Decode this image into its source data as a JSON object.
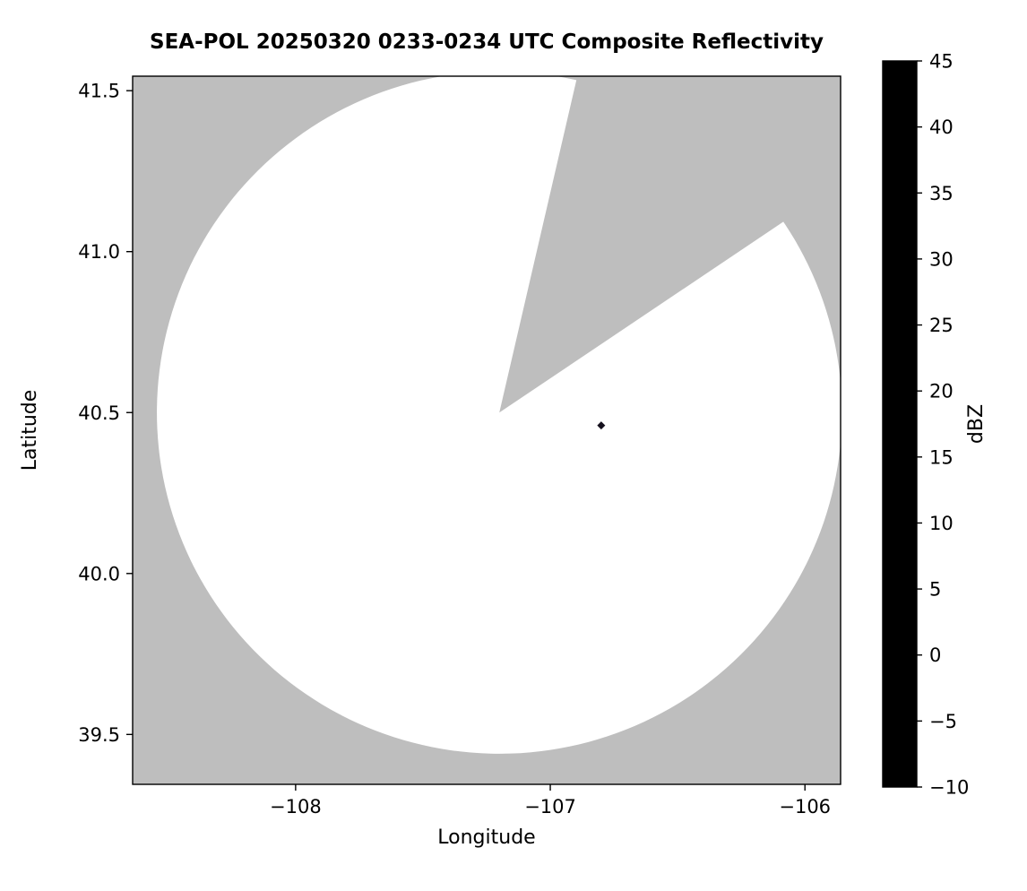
{
  "figure": {
    "background": "#ffffff"
  },
  "chart_data": {
    "type": "radar_composite_reflectivity_map",
    "title": "SEA-POL 20250320 0233-0234 UTC Composite Reflectivity",
    "xlabel": "Longitude",
    "ylabel": "Latitude",
    "xlim": [
      -108.64,
      -105.86
    ],
    "ylim": [
      39.345,
      41.545
    ],
    "grid": false,
    "x_ticks": [
      -108,
      -107,
      -106
    ],
    "x_tick_labels": [
      "−108",
      "−107",
      "−106"
    ],
    "y_ticks": [
      39.5,
      40.0,
      40.5,
      41.0,
      41.5
    ],
    "y_tick_labels": [
      "39.5",
      "40.0",
      "40.5",
      "41.0",
      "41.5"
    ],
    "no_data_color": "#bebebe",
    "coverage": {
      "description": "radar scan disk (valid-data region), white = scanned but no echo",
      "center_lon": -107.2,
      "center_lat": 40.5,
      "radius_lon_deg": 1.345,
      "radius_lat_deg": 1.06,
      "fill": "#ffffff",
      "missing_sector_azimuth_start_deg": 13,
      "missing_sector_azimuth_end_deg": 56
    },
    "echoes": [
      {
        "lon": -106.8,
        "lat": 40.46,
        "dbz": 45,
        "color": "#15101d"
      }
    ],
    "colorbar": {
      "label": "dBZ",
      "min": -10,
      "max": 45,
      "tick_values": [
        -10,
        -5,
        0,
        5,
        10,
        15,
        20,
        25,
        30,
        35,
        40,
        45
      ],
      "tick_labels": [
        "−10",
        "−5",
        "0",
        "5",
        "10",
        "15",
        "20",
        "25",
        "30",
        "35",
        "40",
        "45"
      ],
      "stops": [
        {
          "value": -10,
          "color": "#000000"
        },
        {
          "value": -8,
          "color": "#10101a"
        },
        {
          "value": -6,
          "color": "#1b1b2e"
        },
        {
          "value": -4,
          "color": "#252545"
        },
        {
          "value": -2,
          "color": "#2d2f60"
        },
        {
          "value": 0,
          "color": "#333c72"
        },
        {
          "value": 2,
          "color": "#36517f"
        },
        {
          "value": 4,
          "color": "#3a698c"
        },
        {
          "value": 6,
          "color": "#3b8190"
        },
        {
          "value": 8,
          "color": "#3c9589"
        },
        {
          "value": 10,
          "color": "#40a474"
        },
        {
          "value": 12,
          "color": "#4cb25f"
        },
        {
          "value": 14,
          "color": "#78c25a"
        },
        {
          "value": 15.5,
          "color": "#aad35f"
        },
        {
          "value": 17,
          "color": "#e8eba0"
        },
        {
          "value": 18.5,
          "color": "#efe96d"
        },
        {
          "value": 20,
          "color": "#f2da4e"
        },
        {
          "value": 22,
          "color": "#f3c03b"
        },
        {
          "value": 24,
          "color": "#f1a52f"
        },
        {
          "value": 26,
          "color": "#ee8928"
        },
        {
          "value": 28,
          "color": "#e56d22"
        },
        {
          "value": 30,
          "color": "#d94e25"
        },
        {
          "value": 31.5,
          "color": "#cb3528"
        },
        {
          "value": 33,
          "color": "#ba2133"
        },
        {
          "value": 34.5,
          "color": "#ab1c4a"
        },
        {
          "value": 36,
          "color": "#a62563"
        },
        {
          "value": 37.5,
          "color": "#b04384"
        },
        {
          "value": 39,
          "color": "#bf659f"
        },
        {
          "value": 40.5,
          "color": "#cc87bb"
        },
        {
          "value": 41.8,
          "color": "#d2a6d6"
        },
        {
          "value": 43,
          "color": "#a379cb"
        },
        {
          "value": 44,
          "color": "#6b45a1"
        },
        {
          "value": 45,
          "color": "#2f1a52"
        }
      ]
    }
  }
}
